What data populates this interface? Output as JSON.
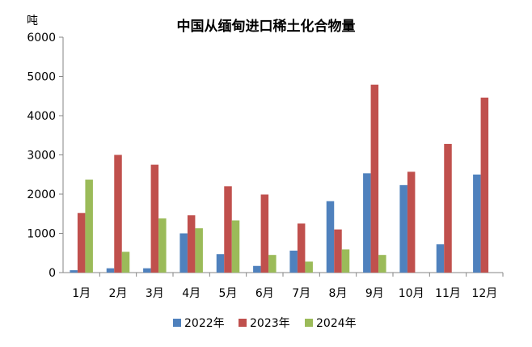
{
  "chart_data": {
    "type": "bar",
    "title": "中国从缅甸进口稀土化合物量",
    "ylabel": "吨",
    "xlabel": "",
    "ylim": [
      0,
      6000
    ],
    "yticks": [
      "0",
      "1000",
      "2000",
      "3000",
      "4000",
      "5000",
      "6000"
    ],
    "grid": false,
    "legend_position": "bottom",
    "categories": [
      "1月",
      "2月",
      "3月",
      "4月",
      "5月",
      "6月",
      "7月",
      "8月",
      "9月",
      "10月",
      "11月",
      "12月"
    ],
    "series": [
      {
        "name": "2022年",
        "color": "#4f81bd",
        "values": [
          60,
          110,
          110,
          1000,
          470,
          170,
          560,
          1820,
          2530,
          2230,
          720,
          2500
        ]
      },
      {
        "name": "2023年",
        "color": "#c0504d",
        "values": [
          1520,
          3000,
          2750,
          1460,
          2200,
          1990,
          1250,
          1100,
          4790,
          2570,
          3280,
          4460
        ]
      },
      {
        "name": "2024年",
        "color": "#9bbb59",
        "values": [
          2370,
          530,
          1380,
          1130,
          1330,
          450,
          280,
          590,
          450,
          null,
          null,
          null
        ]
      }
    ]
  }
}
